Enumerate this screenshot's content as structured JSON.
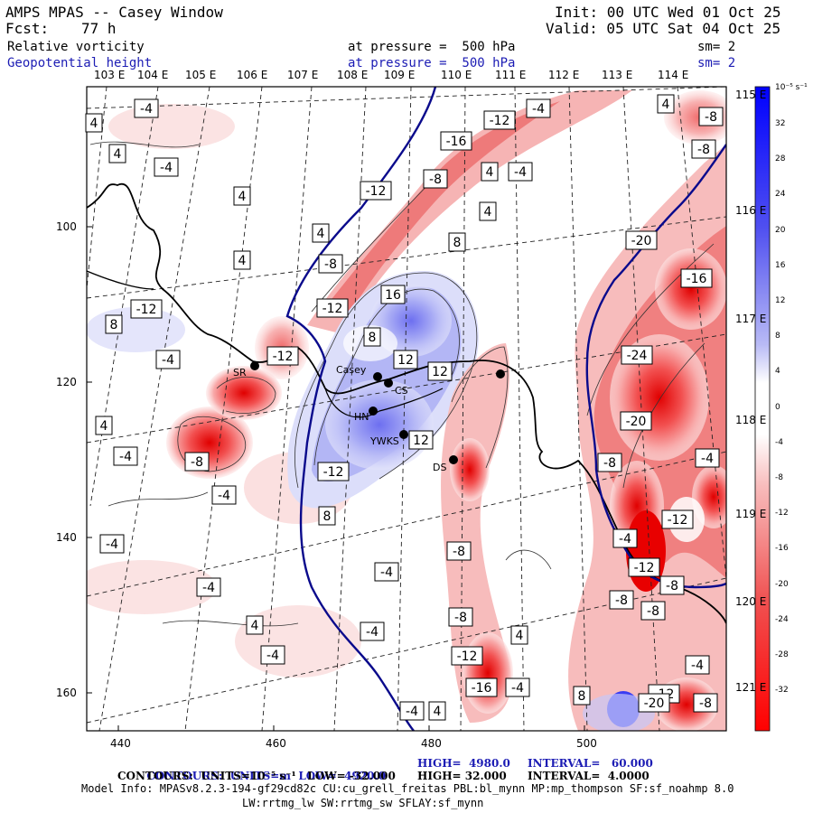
{
  "header": {
    "model": "AMPS MPAS -- Casey Window",
    "init": "Init: 00 UTC Wed 01 Oct 25",
    "fcst_label": "Fcst:",
    "fcst_value": "77 h",
    "valid": "Valid: 05 UTC Sat 04 Oct 25",
    "field1": "Relative vorticity",
    "field1_level": "at pressure =  500 hPa",
    "field1_sm": "sm= 2",
    "field2": "Geopotential height",
    "field2_level": "at pressure =  500 hPa",
    "field2_sm": "sm= 2"
  },
  "longitude_labels": [
    "103 E",
    "104 E",
    "105 E",
    "106 E",
    "107 E",
    "108 E",
    "109 E",
    "110 E",
    "111 E",
    "112 E",
    "113 E",
    "114 E"
  ],
  "latitude_labels": [
    "115 E",
    "116 E",
    "117 E",
    "118 E",
    "119 E",
    "120 E",
    "121 E"
  ],
  "x_ticks": [
    "440",
    "460",
    "480",
    "500"
  ],
  "y_ticks": [
    "100",
    "120",
    "140",
    "160"
  ],
  "colorbar": {
    "unit": "10⁻⁵ s⁻¹",
    "labels": [
      "32",
      "28",
      "24",
      "20",
      "16",
      "12",
      "8",
      "4",
      "0",
      "-4",
      "-8",
      "-12",
      "-16",
      "-20",
      "-24",
      "-28",
      "-32"
    ]
  },
  "stations": [
    "SR",
    "Casey",
    "CS",
    "HN",
    "YWKS",
    "DS"
  ],
  "contour_labels": [
    "4",
    "-4",
    "4",
    "-4",
    "4",
    "4",
    "-4",
    "4",
    "-4",
    "-12",
    "-16",
    "-4",
    "4",
    "-8",
    "-12",
    "-8",
    "4",
    "8",
    "16",
    "-12",
    "8",
    "-12",
    "8",
    "12",
    "12",
    "-12",
    "4",
    "-4",
    "12",
    "-12",
    "-8",
    "8",
    "-4",
    "-4",
    "-4",
    "-4",
    "4",
    "-4",
    "-4",
    "-8",
    "-12",
    "-16",
    "-4",
    "4",
    "-8",
    "8",
    "4",
    "-4",
    "-12",
    "-4",
    "-8",
    "-16",
    "-8",
    "-20",
    "-24",
    "-20",
    "-8",
    "-4",
    "-12",
    "-8",
    "-8",
    "-12",
    "-4",
    "-20",
    "-8",
    "4",
    "-8"
  ],
  "footer": {
    "line1_part1": "CONTOURS:  UNITS=m  LOW=  4920.0",
    "line1_part2": "HIGH=  4980.0",
    "line1_part3": "INTERVAL=   60.000",
    "line2_part1": "CONTOURS:  UNITS=10⁻⁵ s⁻¹   LOW= -32.000",
    "line2_part2": "HIGH= 32.000",
    "line2_part3": "INTERVAL=  4.0000",
    "model_info": "Model Info: MPASv8.2.3-194-gf29cd82c CU:cu_grell_freitas PBL:bl_mynn MP:mp_thompson SF:sf_noahmp 8.0",
    "model_info2": "LW:rrtmg_lw SW:rrtmg_sw SFLAY:sf_mynn"
  },
  "colors": {
    "neg_strong": "#ff1a1a",
    "pos_strong": "#1f1fff",
    "height_contour": "#0a0a8c",
    "text_blue": "#1c1cb4"
  }
}
